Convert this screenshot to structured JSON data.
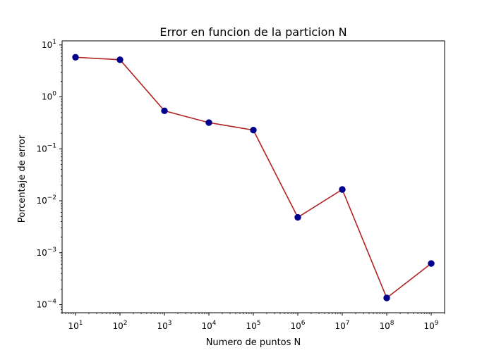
{
  "chart_data": {
    "type": "line",
    "title": "Error en funcion de la particion N",
    "xlabel": "Numero de puntos N",
    "ylabel": "Porcentaje de error",
    "x_scale": "log",
    "y_scale": "log",
    "xlim": [
      5,
      2000000000
    ],
    "ylim": [
      7e-05,
      12
    ],
    "grid": false,
    "x_ticks": [
      {
        "base": "10",
        "exp": "1",
        "value": 10
      },
      {
        "base": "10",
        "exp": "2",
        "value": 100
      },
      {
        "base": "10",
        "exp": "3",
        "value": 1000
      },
      {
        "base": "10",
        "exp": "4",
        "value": 10000
      },
      {
        "base": "10",
        "exp": "5",
        "value": 100000
      },
      {
        "base": "10",
        "exp": "6",
        "value": 1000000
      },
      {
        "base": "10",
        "exp": "7",
        "value": 10000000
      },
      {
        "base": "10",
        "exp": "8",
        "value": 100000000
      },
      {
        "base": "10",
        "exp": "9",
        "value": 1000000000
      }
    ],
    "y_ticks": [
      {
        "base": "10",
        "exp": "1",
        "value": 10
      },
      {
        "base": "10",
        "exp": "0",
        "value": 1
      },
      {
        "base": "10",
        "exp": "−1",
        "value": 0.1
      },
      {
        "base": "10",
        "exp": "−2",
        "value": 0.01
      },
      {
        "base": "10",
        "exp": "−3",
        "value": 0.001
      },
      {
        "base": "10",
        "exp": "−4",
        "value": 0.0001
      }
    ],
    "series": [
      {
        "x": [
          10,
          100,
          1000,
          10000,
          100000,
          1000000,
          10000000,
          100000000,
          1000000000
        ],
        "y": [
          5.8,
          5.2,
          0.54,
          0.32,
          0.23,
          0.0048,
          0.0165,
          0.000135,
          0.00062
        ],
        "line_color": "#b22222",
        "marker_color": "#00008b"
      }
    ]
  }
}
